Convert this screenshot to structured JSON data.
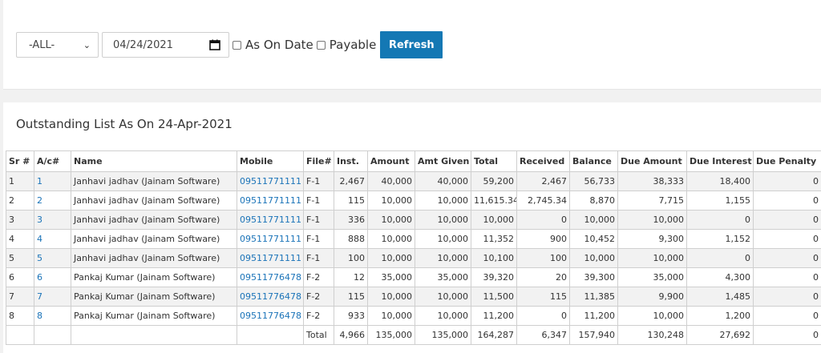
{
  "filters": {
    "account_select": "-ALL-",
    "date_value": "04/24/2021",
    "as_on_date_label": "As On Date",
    "payable_label": "Payable",
    "refresh_label": "Refresh"
  },
  "list": {
    "title": "Outstanding List As On 24-Apr-2021",
    "columns": [
      "Sr #",
      "A/c#",
      "Name",
      "Mobile",
      "File#",
      "Inst.",
      "Amount",
      "Amt Given",
      "Total",
      "Received",
      "Balance",
      "Due Amount",
      "Due Interest",
      "Due Penalty"
    ],
    "rows": [
      {
        "sr": "1",
        "ac": "1",
        "name": "Janhavi jadhav (Jainam Software)",
        "mobile": "09511771111",
        "file": "F-1",
        "inst": "2,467",
        "amount": "40,000",
        "given": "40,000",
        "total": "59,200",
        "received": "2,467",
        "balance": "56,733",
        "due_amount": "38,333",
        "due_interest": "18,400",
        "due_penalty": "0"
      },
      {
        "sr": "2",
        "ac": "2",
        "name": "Janhavi jadhav (Jainam Software)",
        "mobile": "09511771111",
        "file": "F-1",
        "inst": "115",
        "amount": "10,000",
        "given": "10,000",
        "total": "11,615.34",
        "received": "2,745.34",
        "balance": "8,870",
        "due_amount": "7,715",
        "due_interest": "1,155",
        "due_penalty": "0"
      },
      {
        "sr": "3",
        "ac": "3",
        "name": "Janhavi jadhav (Jainam Software)",
        "mobile": "09511771111",
        "file": "F-1",
        "inst": "336",
        "amount": "10,000",
        "given": "10,000",
        "total": "10,000",
        "received": "0",
        "balance": "10,000",
        "due_amount": "10,000",
        "due_interest": "0",
        "due_penalty": "0"
      },
      {
        "sr": "4",
        "ac": "4",
        "name": "Janhavi jadhav (Jainam Software)",
        "mobile": "09511771111",
        "file": "F-1",
        "inst": "888",
        "amount": "10,000",
        "given": "10,000",
        "total": "11,352",
        "received": "900",
        "balance": "10,452",
        "due_amount": "9,300",
        "due_interest": "1,152",
        "due_penalty": "0"
      },
      {
        "sr": "5",
        "ac": "5",
        "name": "Janhavi jadhav (Jainam Software)",
        "mobile": "09511771111",
        "file": "F-1",
        "inst": "100",
        "amount": "10,000",
        "given": "10,000",
        "total": "10,100",
        "received": "100",
        "balance": "10,000",
        "due_amount": "10,000",
        "due_interest": "0",
        "due_penalty": "0"
      },
      {
        "sr": "6",
        "ac": "6",
        "name": "Pankaj Kumar (Jainam Software)",
        "mobile": "09511776478",
        "file": "F-2",
        "inst": "12",
        "amount": "35,000",
        "given": "35,000",
        "total": "39,320",
        "received": "20",
        "balance": "39,300",
        "due_amount": "35,000",
        "due_interest": "4,300",
        "due_penalty": "0"
      },
      {
        "sr": "7",
        "ac": "7",
        "name": "Pankaj Kumar (Jainam Software)",
        "mobile": "09511776478",
        "file": "F-2",
        "inst": "115",
        "amount": "10,000",
        "given": "10,000",
        "total": "11,500",
        "received": "115",
        "balance": "11,385",
        "due_amount": "9,900",
        "due_interest": "1,485",
        "due_penalty": "0"
      },
      {
        "sr": "8",
        "ac": "8",
        "name": "Pankaj Kumar (Jainam Software)",
        "mobile": "09511776478",
        "file": "F-2",
        "inst": "933",
        "amount": "10,000",
        "given": "10,000",
        "total": "11,200",
        "received": "0",
        "balance": "11,200",
        "due_amount": "10,000",
        "due_interest": "1,200",
        "due_penalty": "0"
      }
    ],
    "totals": {
      "label": "Total",
      "inst": "4,966",
      "amount": "135,000",
      "given": "135,000",
      "total": "164,287",
      "received": "6,347",
      "balance": "157,940",
      "due_amount": "130,248",
      "due_interest": "27,692",
      "due_penalty": "0"
    }
  },
  "colors": {
    "accent": "#1478b4",
    "link": "#1a73b8",
    "stripe": "#f2f2f2"
  },
  "icons": {
    "date_picker": "calendar-icon",
    "select": "chevron-down-icon"
  }
}
